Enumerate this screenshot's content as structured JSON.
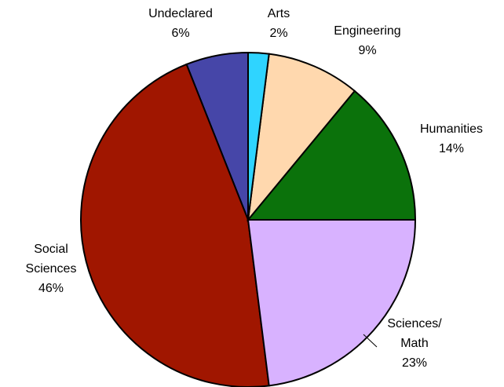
{
  "chart_data": {
    "type": "pie",
    "categories": [
      "Arts",
      "Engineering",
      "Humanities",
      "Sciences/ Math",
      "Social Sciences",
      "Undeclared"
    ],
    "values": [
      2,
      9,
      14,
      23,
      46,
      6
    ],
    "value_labels": [
      "2%",
      "9%",
      "14%",
      "23%",
      "46%",
      "6%"
    ],
    "colors": [
      "#2fd4ff",
      "#ffd8ae",
      "#0b720b",
      "#d8b2ff",
      "#a01600",
      "#4646a8"
    ]
  }
}
